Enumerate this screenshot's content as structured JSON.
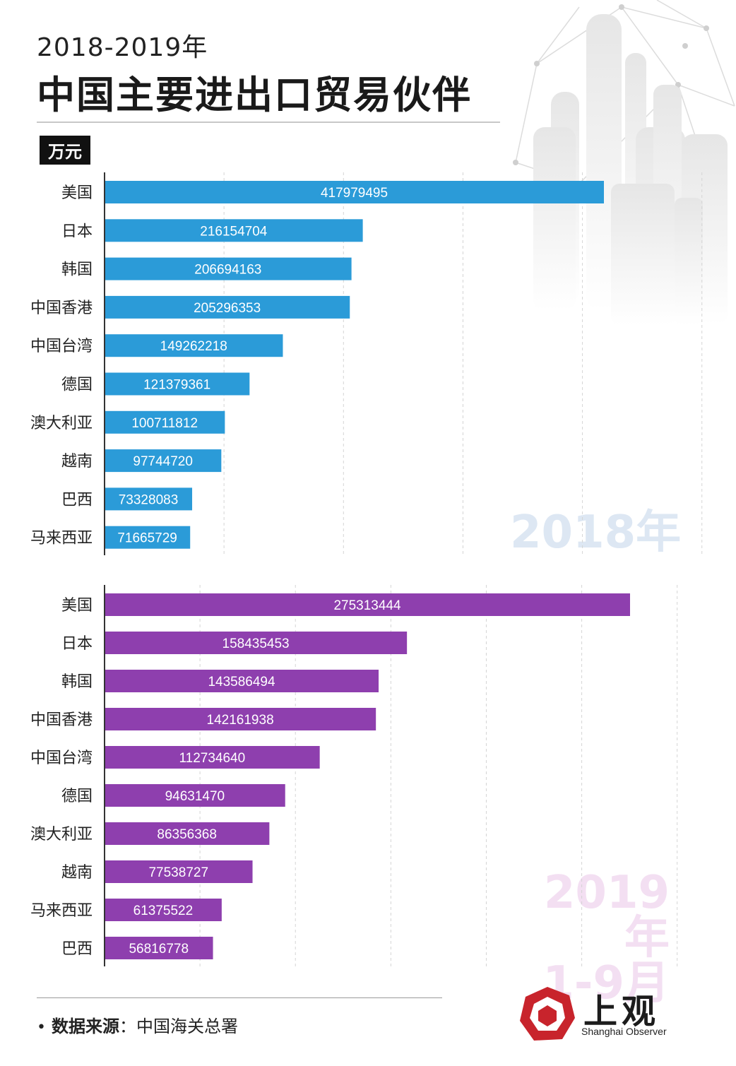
{
  "header": {
    "subtitle": "2018-2019年",
    "title": "中国主要进出口贸易伙伴",
    "unit": "万元"
  },
  "source": {
    "label": "数据来源",
    "sep": "：",
    "value": "中国海关总署"
  },
  "logo": {
    "name": "上观",
    "english": "Shanghai Observer"
  },
  "colors": {
    "bar2018": "#2b9bd8",
    "bar2019": "#8e3fae",
    "wm2018": "#dde7f3",
    "wm2019": "#f3dff2"
  },
  "chart_data": [
    {
      "type": "bar",
      "orientation": "horizontal",
      "watermark": "2018年",
      "watermark_line2": "",
      "categories": [
        "美国",
        "日本",
        "韩国",
        "中国香港",
        "中国台湾",
        "德国",
        "澳大利亚",
        "越南",
        "巴西",
        "马来西亚"
      ],
      "values": [
        417979495,
        216154704,
        206694163,
        205296353,
        149262218,
        121379361,
        100711812,
        97744720,
        73328083,
        71665729
      ],
      "unit": "万元",
      "xlim": [
        0,
        500000000
      ],
      "grid": true
    },
    {
      "type": "bar",
      "orientation": "horizontal",
      "watermark": "2019年",
      "watermark_line2": "1-9月",
      "categories": [
        "美国",
        "日本",
        "韩国",
        "中国香港",
        "中国台湾",
        "德国",
        "澳大利亚",
        "越南",
        "马来西亚",
        "巴西"
      ],
      "values": [
        275313444,
        158435453,
        143586494,
        142161938,
        112734640,
        94631470,
        86356368,
        77538727,
        61375522,
        56816778
      ],
      "unit": "万元",
      "xlim": [
        0,
        300000000
      ],
      "grid": true
    }
  ]
}
